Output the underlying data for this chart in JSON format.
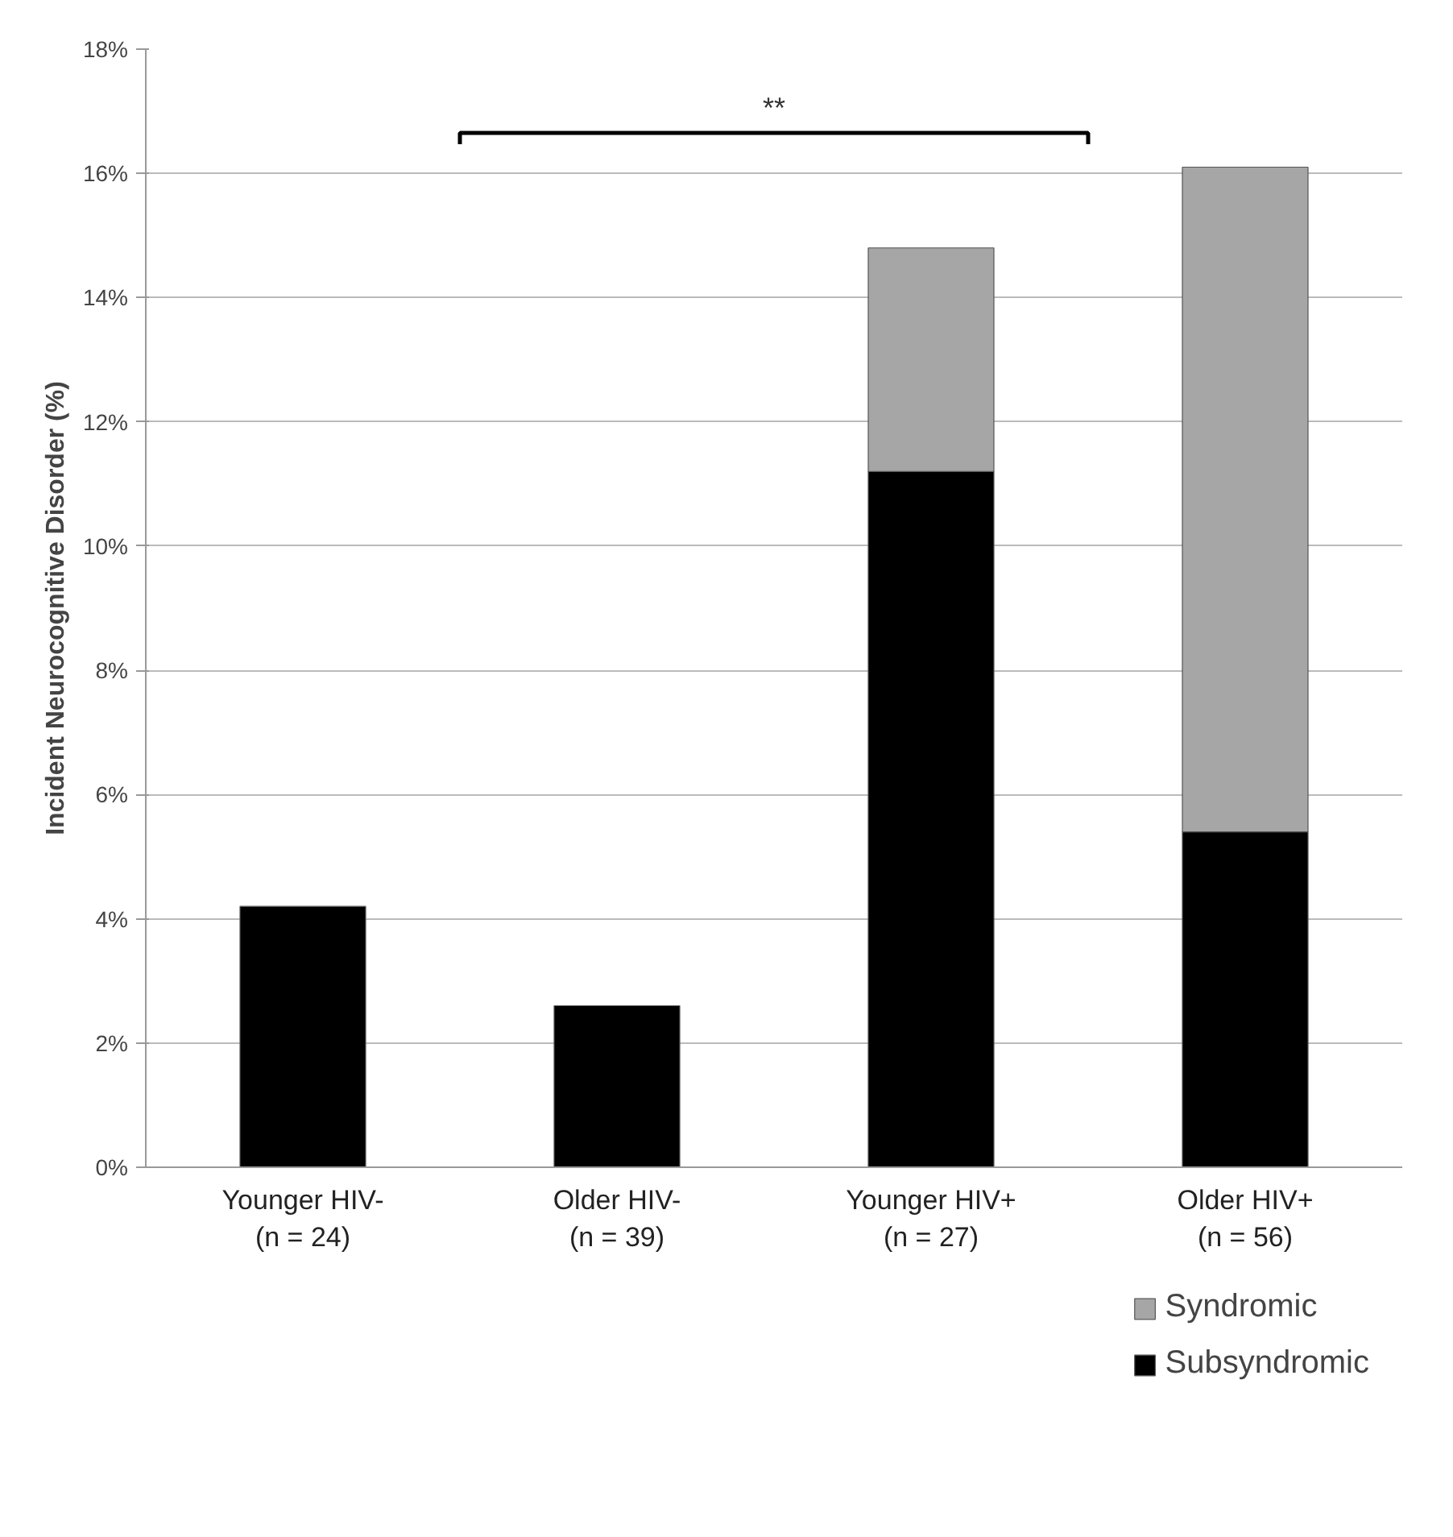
{
  "chart_data": {
    "type": "bar",
    "stacked": true,
    "ylabel": "Incident Neurocognitive Disorder (%)",
    "categories": [
      "Younger HIV-\n(n = 24)",
      "Older HIV-\n(n = 39)",
      "Younger HIV+\n(n = 27)",
      "Older HIV+\n(n = 56)"
    ],
    "series": [
      {
        "name": "Subsyndromic",
        "color": "#000000",
        "values": [
          4.2,
          2.6,
          11.2,
          5.4
        ]
      },
      {
        "name": "Syndromic",
        "color": "#a6a6a6",
        "values": [
          0,
          0,
          3.6,
          10.7
        ]
      }
    ],
    "ylim": [
      0,
      18
    ],
    "yticks": [
      {
        "value": 0,
        "label": "0%"
      },
      {
        "value": 2,
        "label": "2%"
      },
      {
        "value": 4,
        "label": "4%"
      },
      {
        "value": 6,
        "label": "6%"
      },
      {
        "value": 8,
        "label": "8%"
      },
      {
        "value": 10,
        "label": "10%"
      },
      {
        "value": 12,
        "label": "12%"
      },
      {
        "value": 14,
        "label": "14%"
      },
      {
        "value": 16,
        "label": "16%"
      },
      {
        "value": 18,
        "label": "18%"
      }
    ],
    "grid": "y",
    "legend": "bottom right",
    "annotations": [
      "**"
    ]
  }
}
